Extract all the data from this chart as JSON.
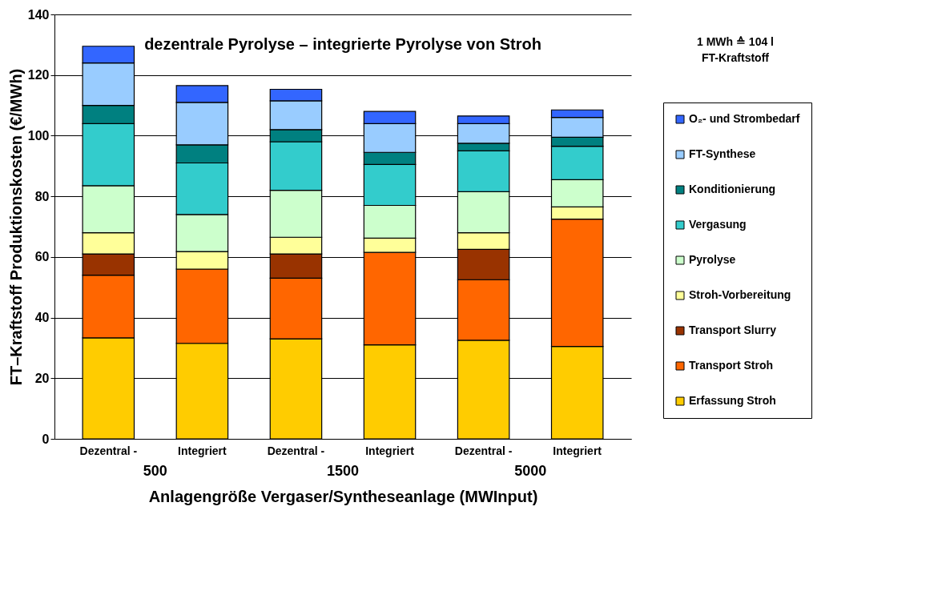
{
  "chart_data": {
    "type": "bar",
    "stacked": true,
    "title": "dezentrale Pyrolyse – integrierte Pyrolyse von Stroh",
    "xlabel": "Anlagengröße Vergaser/Syntheseanlage (MWInput)",
    "ylabel": "FT–Kraftstoff  Produktionskosten (€/MWh)",
    "categories": [
      "Dezentral -",
      "Integriert",
      "Dezentral -",
      "Integriert",
      "Dezentral -",
      "Integriert"
    ],
    "annotations": [
      "500",
      "1500",
      "5000",
      "1 MWh ≙ 104 l\nFT-Kraftstoff"
    ],
    "series": [
      {
        "name": "Erfassung Stroh",
        "color": "#ffcc00",
        "values": [
          33.3,
          31.5,
          33,
          31,
          32.5,
          30.5
        ]
      },
      {
        "name": "Transport Stroh",
        "color": "#ff6600",
        "values": [
          20.7,
          24.5,
          20,
          30.5,
          20,
          42
        ]
      },
      {
        "name": "Transport Slurry",
        "color": "#993300",
        "values": [
          7,
          null,
          8,
          null,
          10,
          null
        ]
      },
      {
        "name": "Stroh-Vorbereitung",
        "color": "#ffff99",
        "values": [
          7,
          5.8,
          5.5,
          4.7,
          5.5,
          4
        ]
      },
      {
        "name": "Pyrolyse",
        "color": "#ccffcc",
        "values": [
          15.5,
          12.2,
          15.5,
          10.8,
          13.5,
          9
        ]
      },
      {
        "name": "Vergasung",
        "color": "#33cccc",
        "values": [
          20.5,
          17,
          16,
          13.5,
          13.5,
          11
        ]
      },
      {
        "name": "Konditionierung",
        "color": "#008080",
        "values": [
          6,
          6,
          4,
          4,
          2.5,
          3
        ]
      },
      {
        "name": "FT-Synthese",
        "color": "#99ccff",
        "values": [
          14,
          14,
          9.5,
          9.5,
          6.5,
          6.5
        ]
      },
      {
        "name": "O₂- und Strombedarf",
        "color": "#3366ff",
        "values": [
          5.5,
          5.5,
          3.8,
          4,
          2.5,
          2.5
        ]
      }
    ],
    "ylim": [
      0,
      140
    ],
    "yticks": [
      0,
      20,
      40,
      60,
      80,
      100,
      120,
      140
    ],
    "grid": "y",
    "legend": "right"
  }
}
